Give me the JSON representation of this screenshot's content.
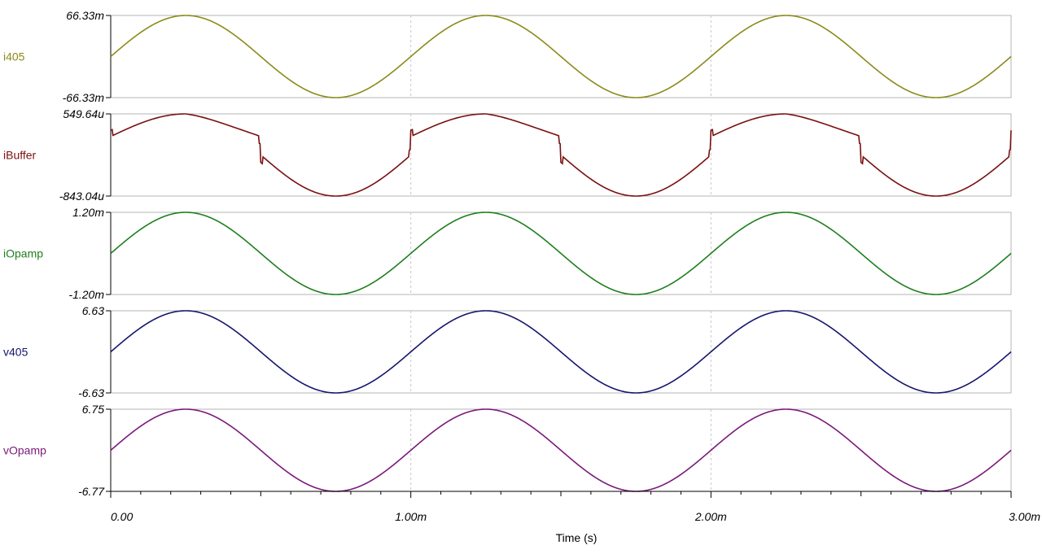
{
  "chart_data": {
    "type": "line",
    "xlabel": "Time (s)",
    "x_ticks": [
      {
        "value": 0.0,
        "label": "0.00"
      },
      {
        "value": 1.0,
        "label": "1.00m"
      },
      {
        "value": 2.0,
        "label": "2.00m"
      },
      {
        "value": 3.0,
        "label": "3.00m"
      }
    ],
    "x_unit_note": "x values in ms",
    "xlim": [
      0,
      3
    ],
    "grid": "vertical dashed at 1.00m and 2.00m",
    "panels": [
      {
        "name": "i405",
        "color": "#8b8b1a",
        "ylim": [
          -66.33,
          66.33
        ],
        "y_top_label": "66.33m",
        "y_bottom_label": "-66.33m",
        "waveform": {
          "shape": "sine",
          "amplitude": 66.33,
          "offset": 0,
          "frequency_khz": 1,
          "phase_ms": 0
        }
      },
      {
        "name": "iBuffer",
        "color": "#7a1010",
        "ylim": [
          -843.04,
          549.64
        ],
        "y_top_label": "549.64u",
        "y_bottom_label": "-843.04u",
        "waveform": {
          "shape": "distorted-sine",
          "frequency_khz": 1,
          "glitches_ms": [
            0.5,
            1.0,
            1.5,
            2.0,
            2.5
          ]
        }
      },
      {
        "name": "iOpamp",
        "color": "#1f7f1f",
        "ylim": [
          -1.2,
          1.2
        ],
        "y_top_label": "1.20m",
        "y_bottom_label": "-1.20m",
        "waveform": {
          "shape": "sine",
          "amplitude": 1.2,
          "offset": 0,
          "frequency_khz": 1,
          "phase_ms": 0
        }
      },
      {
        "name": "v405",
        "color": "#16166e",
        "ylim": [
          -6.63,
          6.63
        ],
        "y_top_label": "6.63",
        "y_bottom_label": "-6.63",
        "waveform": {
          "shape": "sine",
          "amplitude": 6.63,
          "offset": 0,
          "frequency_khz": 1,
          "phase_ms": 0
        }
      },
      {
        "name": "vOpamp",
        "color": "#7a1a7a",
        "ylim": [
          -6.77,
          6.75
        ],
        "y_top_label": "6.75",
        "y_bottom_label": "-6.77",
        "waveform": {
          "shape": "sine",
          "amplitude": 6.76,
          "offset": -0.01,
          "frequency_khz": 1,
          "phase_ms": 0
        }
      }
    ]
  }
}
